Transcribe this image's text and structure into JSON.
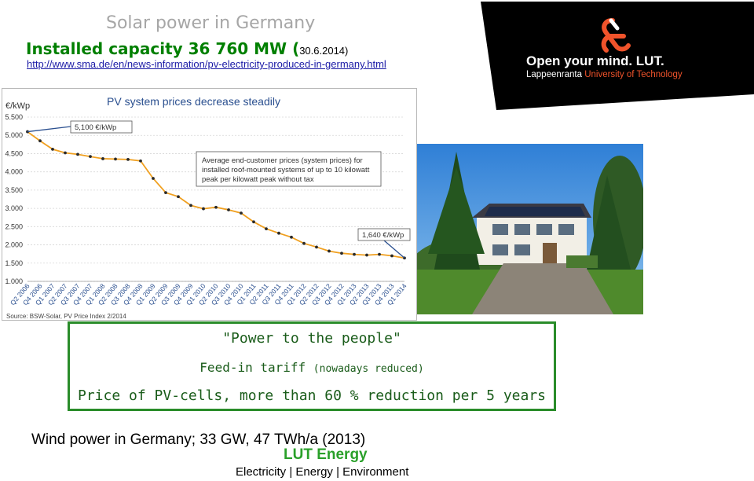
{
  "header": {
    "title": "Solar power in Germany",
    "subtitle_main": "Installed capacity 36 760 MW (",
    "subtitle_date": "30.6.2014)",
    "source_url": "http://www.sma.de/en/news-information/pv-electricity-produced-in-germany.html"
  },
  "logo": {
    "line1": "Open your mind. LUT.",
    "line2_a": "Lappeenranta ",
    "line2_b": "University of Technology",
    "accent_color": "#f0532b"
  },
  "chart_data": {
    "type": "line",
    "title": "PV system prices decrease steadily",
    "ylabel": "€/kWp",
    "ylim": [
      1000,
      5500
    ],
    "y_ticks": [
      "1.000",
      "1.500",
      "2.000",
      "2.500",
      "3.000",
      "3.500",
      "4.000",
      "4.500",
      "5.000",
      "5.500"
    ],
    "x": [
      "Q2 2006",
      "Q4 2006",
      "Q1 2007",
      "Q2 2007",
      "Q3 2007",
      "Q4 2007",
      "Q1 2008",
      "Q2 2008",
      "Q3 2008",
      "Q4 2008",
      "Q1 2009",
      "Q2 2009",
      "Q3 2009",
      "Q4 2009",
      "Q1 2010",
      "Q2 2010",
      "Q3 2010",
      "Q4 2010",
      "Q1 2011",
      "Q2 2011",
      "Q3 2011",
      "Q4 2011",
      "Q1 2012",
      "Q2 2012",
      "Q3 2012",
      "Q4 2012",
      "Q1 2013",
      "Q2 2013",
      "Q3 2013",
      "Q4 2013",
      "Q1 2014"
    ],
    "values": [
      5100,
      4850,
      4620,
      4520,
      4480,
      4420,
      4360,
      4350,
      4340,
      4300,
      3820,
      3430,
      3320,
      3080,
      2990,
      3030,
      2960,
      2870,
      2630,
      2440,
      2320,
      2210,
      2040,
      1940,
      1830,
      1770,
      1740,
      1720,
      1740,
      1700,
      1640
    ],
    "annotations": {
      "start": "5,100 €/kWp",
      "end": "1,640 €/kWp",
      "note_lines": [
        "Average end-customer prices (system prices) for",
        "installed roof-mounted systems of up to 10 kilowatt",
        "peak per kilowatt peak without tax"
      ]
    },
    "source": "Source: BSW-Solar, PV Price Index 2/2014",
    "line_color": "#f0a020",
    "grid": true
  },
  "box": {
    "line1": "\"Power to the people\"",
    "line2_main": "Feed-in tariff ",
    "line2_small": "(nowadays reduced)",
    "line3": "Price of PV-cells, more than  60 % reduction per 5 years",
    "border_color": "#2a8c2a"
  },
  "footer": {
    "wind": "Wind power in Germany; 33 GW, 47 TWh/a  (2013)",
    "lut_energy": "LUT Energy",
    "tagline": "Electricity | Energy | Environment"
  }
}
